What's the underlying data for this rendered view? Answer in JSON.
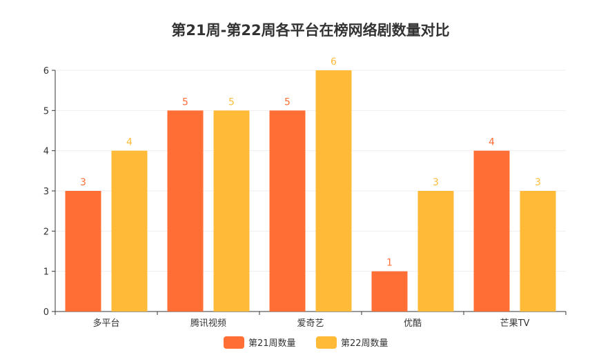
{
  "chart_data": {
    "type": "bar",
    "title": "第21周-第22周各平台在榜网络剧数量对比",
    "categories": [
      "多平台",
      "腾讯视频",
      "爱奇艺",
      "优酷",
      "芒果TV"
    ],
    "series": [
      {
        "name": "第21周数量",
        "values": [
          3,
          5,
          5,
          1,
          4
        ],
        "color": "#ff6e35"
      },
      {
        "name": "第22周数量",
        "values": [
          4,
          5,
          6,
          3,
          3
        ],
        "color": "#ffbb38"
      }
    ],
    "xlabel": "",
    "ylabel": "",
    "ylim": [
      0,
      6
    ],
    "yticks": [
      "0",
      "1",
      "2",
      "3",
      "4",
      "5",
      "6"
    ],
    "grid": true,
    "legend_position": "bottom-center",
    "data_labels": true
  }
}
